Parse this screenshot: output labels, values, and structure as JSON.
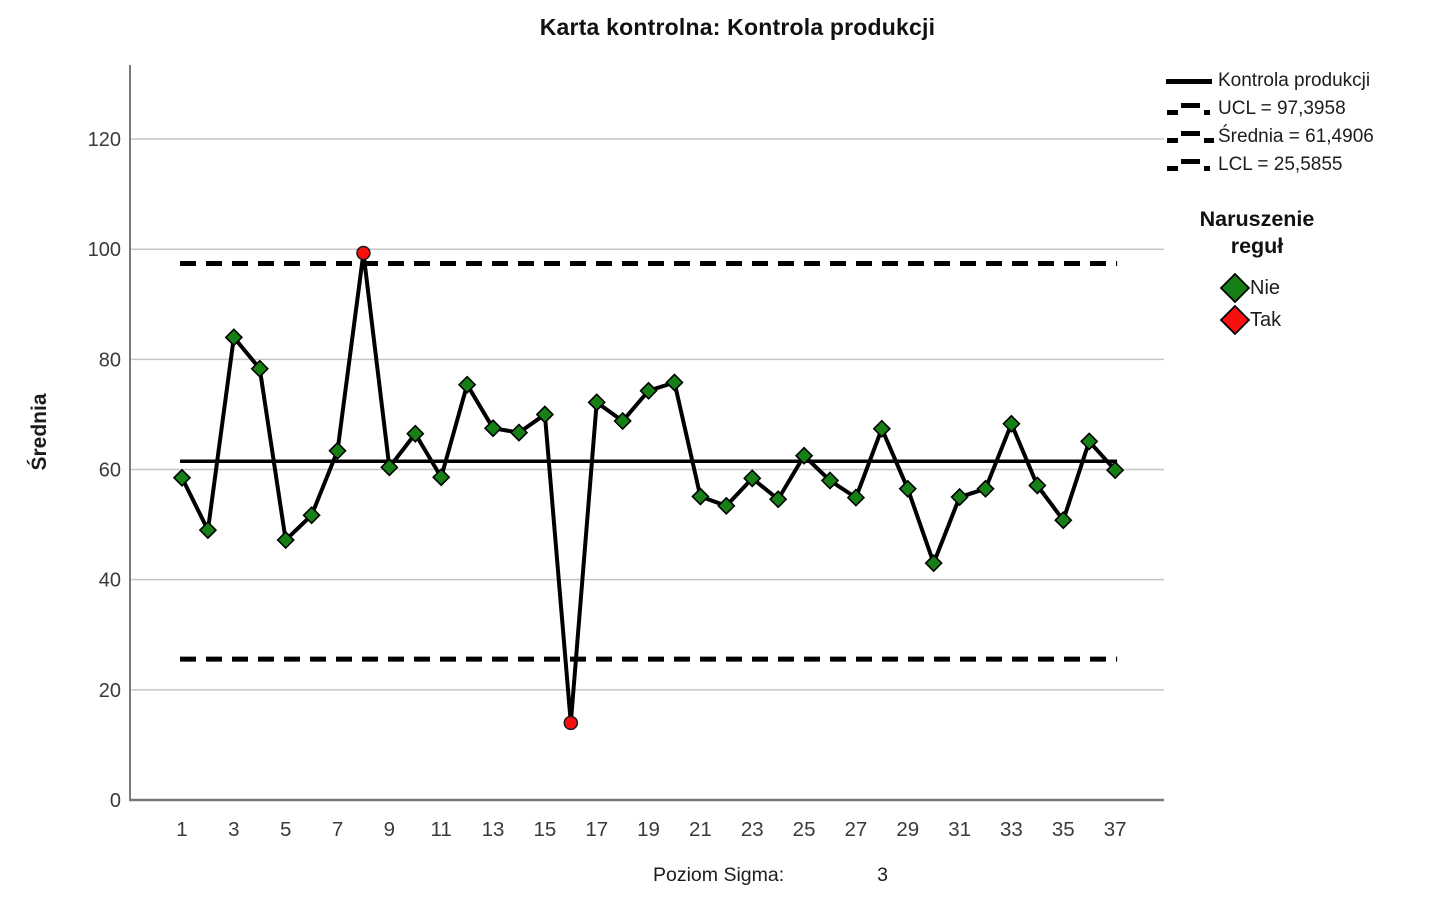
{
  "title": "Karta kontrolna: Kontrola produkcji",
  "y_axis": {
    "label": "Średnia"
  },
  "footer": {
    "label": "Poziom Sigma:",
    "value": "3"
  },
  "legend": {
    "series_label": "Kontrola produkcji",
    "ucl_label": "UCL = 97,3958",
    "mean_label": "Średnia = 61,4906",
    "lcl_label": "LCL = 25,5855",
    "violations_title_line1": "Naruszenie",
    "violations_title_line2": "reguł",
    "no_label": "Nie",
    "yes_label": "Tak"
  },
  "colors": {
    "ok_marker": "#168016",
    "violation_marker": "#fa0f0f",
    "series_line": "#000000",
    "grid": "#c6c6c6",
    "axis": "#7a7a7a",
    "tick_text": "#3a3a3a"
  },
  "chart_data": {
    "type": "line",
    "title": "Karta kontrolna: Kontrola produkcji",
    "xlabel": "",
    "ylabel": "Średnia",
    "x": [
      1,
      2,
      3,
      4,
      5,
      6,
      7,
      8,
      9,
      10,
      11,
      12,
      13,
      14,
      15,
      16,
      17,
      18,
      19,
      20,
      21,
      22,
      23,
      24,
      25,
      26,
      27,
      28,
      29,
      30,
      31,
      32,
      33,
      34,
      35,
      36,
      37
    ],
    "values": [
      58.5,
      49,
      84,
      78.3,
      47.2,
      51.7,
      63.4,
      99.3,
      60.4,
      66.5,
      58.6,
      75.4,
      67.5,
      66.7,
      70,
      14,
      72.2,
      68.8,
      74.3,
      75.8,
      55.1,
      53.4,
      58.4,
      54.6,
      62.5,
      58,
      54.9,
      67.4,
      56.5,
      43,
      55,
      56.5,
      68.3,
      57.1,
      50.8,
      65.1,
      59.9
    ],
    "violation_points": [
      8,
      16
    ],
    "ucl": 97.3958,
    "mean": 61.4906,
    "lcl": 25.5855,
    "ylim": [
      0,
      133
    ],
    "y_ticks": [
      0,
      20,
      40,
      60,
      80,
      100,
      120
    ],
    "x_tick_labels": [
      1,
      3,
      5,
      7,
      9,
      11,
      13,
      15,
      17,
      19,
      21,
      23,
      25,
      27,
      29,
      31,
      33,
      35,
      37
    ],
    "sigma_level": 3,
    "legend_position": "right",
    "grid": "horizontal",
    "series_name": "Kontrola produkcji",
    "violation_legend": {
      "title": "Naruszenie reguł",
      "no": "Nie",
      "yes": "Tak"
    }
  }
}
